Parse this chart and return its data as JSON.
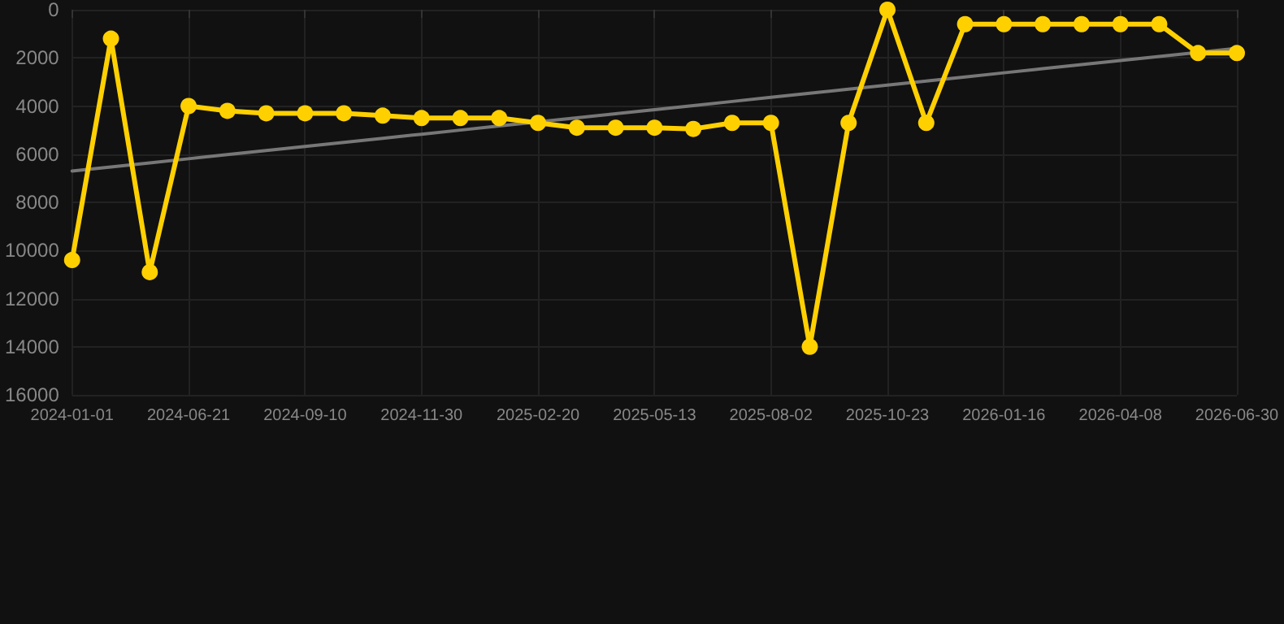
{
  "chart_data": {
    "type": "line",
    "categories": [
      "2024-01-01",
      null,
      null,
      "2024-06-21",
      null,
      null,
      "2024-09-10",
      null,
      null,
      "2024-11-30",
      null,
      null,
      "2025-02-20",
      null,
      null,
      "2025-05-13",
      null,
      null,
      "2025-08-02",
      null,
      null,
      "2025-10-23",
      null,
      null,
      "2026-01-16",
      null,
      null,
      "2026-04-08",
      null,
      null,
      "2026-06-30"
    ],
    "series": [
      {
        "color": "#ffd000",
        "marker": "circle",
        "values": [
          10400,
          1200,
          10900,
          4000,
          4200,
          4300,
          4300,
          4300,
          4400,
          4500,
          4500,
          4500,
          4700,
          4900,
          4900,
          4900,
          4950,
          4700,
          4700,
          14000,
          4700,
          0,
          4700,
          600,
          600,
          600,
          600,
          600,
          600,
          1800,
          1800
        ]
      },
      {
        "color": "#777777",
        "marker": "none",
        "values": [
          6700,
          6530,
          6360,
          6190,
          6020,
          5850,
          5680,
          5510,
          5340,
          5170,
          5000,
          4830,
          4660,
          4490,
          4320,
          4150,
          3980,
          3810,
          3640,
          3470,
          3300,
          3130,
          2960,
          2790,
          2620,
          2450,
          2280,
          2110,
          1940,
          1770,
          1600
        ]
      }
    ],
    "ylim": [
      16000,
      0
    ],
    "yticks": [
      0,
      2000,
      4000,
      6000,
      8000,
      10000,
      12000,
      14000,
      16000
    ],
    "grid": true
  }
}
